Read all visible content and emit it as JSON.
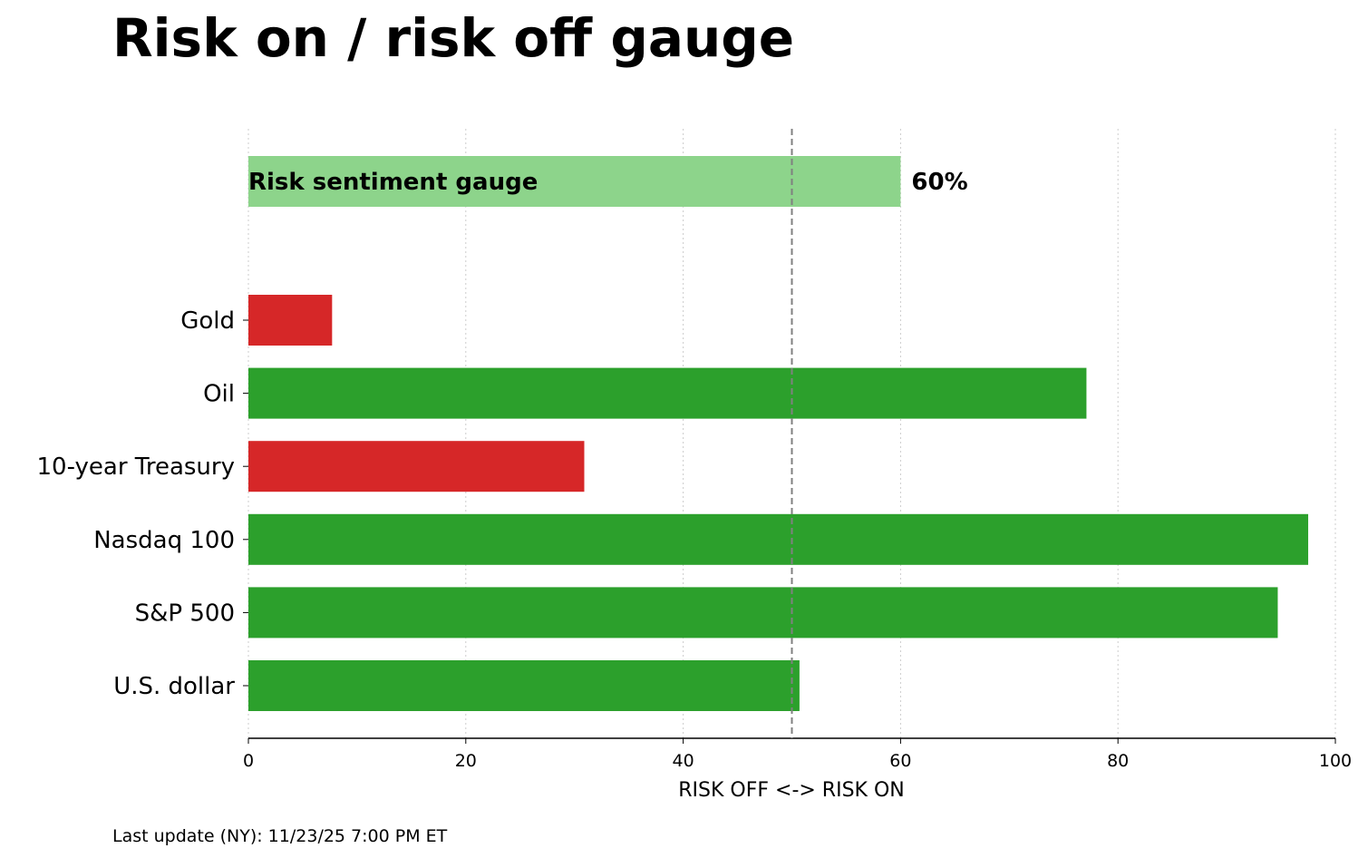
{
  "chart_data": {
    "type": "bar",
    "orientation": "horizontal",
    "title": "Risk on / risk off gauge",
    "xlabel": "RISK OFF <-> RISK ON",
    "footnote": "Last update (NY): 11/23/25 7:00 PM ET",
    "gauge": {
      "label": "Risk sentiment gauge",
      "value": 60,
      "value_label": "60%",
      "color": "#8dd48b"
    },
    "categories": [
      "Gold",
      "Oil",
      "10-year Treasury",
      "Nasdaq 100",
      "S&P 500",
      "U.S. dollar"
    ],
    "values": [
      7.7,
      77.1,
      30.9,
      97.5,
      94.7,
      50.7
    ],
    "colors": [
      "#d62728",
      "#2ca02c",
      "#d62728",
      "#2ca02c",
      "#2ca02c",
      "#2ca02c"
    ],
    "xlim": [
      0,
      100
    ],
    "xticks": [
      0,
      20,
      40,
      60,
      80,
      100
    ],
    "reference_line": 50,
    "grid": true
  }
}
